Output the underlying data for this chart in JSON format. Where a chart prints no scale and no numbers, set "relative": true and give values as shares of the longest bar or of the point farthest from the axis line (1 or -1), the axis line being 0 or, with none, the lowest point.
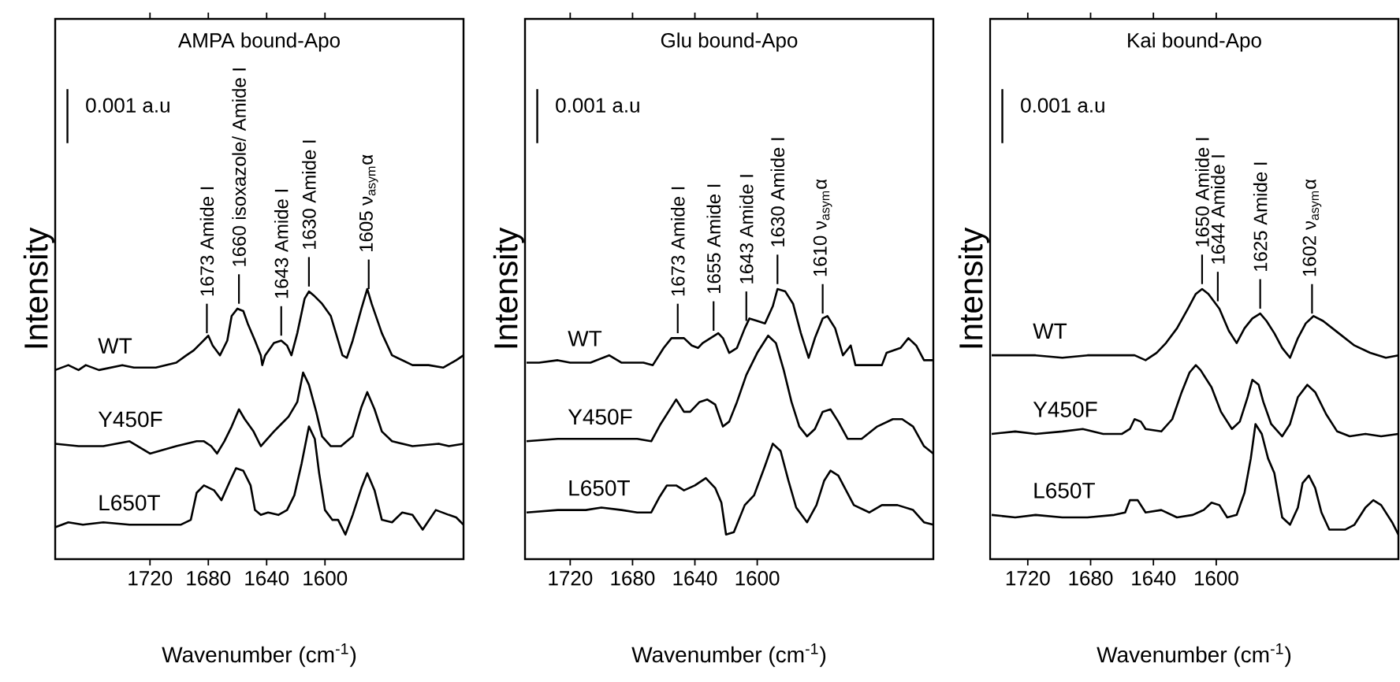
{
  "chart_data": [
    {
      "type": "line",
      "title": "AMPA bound-Apo",
      "xlabel": "Wavenumber (cm$^{-1}$)",
      "ylabel": "Intensity",
      "relative": true,
      "xlim": [
        1785,
        1505
      ],
      "xticks": [
        1720,
        1680,
        1640,
        1600
      ],
      "annotations": [
        "0.001 a.u",
        {
          "text": "1673 Amide I",
          "x": 1681,
          "y": 0.8
        },
        {
          "text": "1660 isoxazole/ Amide I",
          "x": 1659,
          "y": 0.92
        },
        {
          "text": "1643 Amide I",
          "x": 1630,
          "y": 0.79
        },
        {
          "text": "1630 Amide I",
          "x": 1611,
          "y": 0.99
        },
        {
          "text": "1605 ν$_{asym}$α",
          "x": 1570,
          "y": 0.98
        }
      ],
      "series": [
        {
          "name": "WT",
          "color": "#000000",
          "x": [
            1785,
            1776,
            1769,
            1764,
            1755,
            1739,
            1731,
            1716,
            1702,
            1695,
            1690,
            1685,
            1680,
            1677,
            1672,
            1667,
            1664,
            1660,
            1656,
            1653,
            1648,
            1644,
            1643,
            1641,
            1635,
            1630,
            1626,
            1623,
            1619,
            1614,
            1611,
            1607,
            1602,
            1596,
            1591,
            1588,
            1585,
            1581,
            1575,
            1571,
            1568,
            1561,
            1554,
            1540,
            1529,
            1519,
            1510,
            1505
          ],
          "values": [
            0.67,
            0.69,
            0.67,
            0.69,
            0.67,
            0.69,
            0.68,
            0.68,
            0.7,
            0.73,
            0.75,
            0.78,
            0.81,
            0.77,
            0.73,
            0.79,
            0.89,
            0.92,
            0.91,
            0.86,
            0.79,
            0.73,
            0.69,
            0.73,
            0.78,
            0.79,
            0.77,
            0.73,
            0.82,
            0.96,
            0.99,
            0.97,
            0.94,
            0.89,
            0.79,
            0.73,
            0.72,
            0.79,
            0.92,
            1.0,
            0.94,
            0.82,
            0.73,
            0.69,
            0.69,
            0.68,
            0.71,
            0.73
          ]
        },
        {
          "name": "Y450F",
          "color": "#000000",
          "x": [
            1785,
            1769,
            1752,
            1734,
            1720,
            1702,
            1688,
            1683,
            1678,
            1674,
            1669,
            1664,
            1659,
            1655,
            1649,
            1644,
            1641,
            1635,
            1630,
            1625,
            1619,
            1615,
            1611,
            1606,
            1602,
            1596,
            1589,
            1581,
            1575,
            1571,
            1566,
            1561,
            1554,
            1540,
            1522,
            1515,
            1505
          ],
          "values": [
            0.37,
            0.36,
            0.36,
            0.38,
            0.33,
            0.36,
            0.38,
            0.38,
            0.36,
            0.33,
            0.38,
            0.44,
            0.51,
            0.47,
            0.42,
            0.36,
            0.38,
            0.42,
            0.45,
            0.48,
            0.54,
            0.66,
            0.61,
            0.5,
            0.4,
            0.36,
            0.36,
            0.4,
            0.52,
            0.58,
            0.51,
            0.42,
            0.38,
            0.36,
            0.37,
            0.36,
            0.37
          ]
        },
        {
          "name": "L650T",
          "color": "#000000",
          "x": [
            1785,
            1776,
            1766,
            1752,
            1734,
            1716,
            1699,
            1692,
            1688,
            1683,
            1676,
            1671,
            1665,
            1661,
            1656,
            1651,
            1648,
            1644,
            1639,
            1632,
            1626,
            1621,
            1616,
            1611,
            1607,
            1604,
            1600,
            1595,
            1591,
            1586,
            1581,
            1575,
            1571,
            1566,
            1561,
            1554,
            1547,
            1540,
            1533,
            1524,
            1515,
            1510,
            1505
          ],
          "values": [
            0.03,
            0.05,
            0.04,
            0.05,
            0.04,
            0.04,
            0.04,
            0.06,
            0.17,
            0.2,
            0.18,
            0.14,
            0.22,
            0.27,
            0.26,
            0.2,
            0.1,
            0.08,
            0.09,
            0.08,
            0.1,
            0.16,
            0.29,
            0.44,
            0.39,
            0.25,
            0.1,
            0.06,
            0.06,
            0,
            0.08,
            0.19,
            0.25,
            0.18,
            0.06,
            0.05,
            0.09,
            0.08,
            0.02,
            0.1,
            0.08,
            0.07,
            0.04
          ]
        }
      ]
    },
    {
      "type": "line",
      "title": "Glu bound-Apo",
      "xlabel": "Wavenumber (cm$^{-1}$)",
      "ylabel": "Intensity",
      "relative": true,
      "xlim": [
        1749,
        1487
      ],
      "xticks": [
        1720,
        1680,
        1640,
        1600
      ],
      "annotations": [
        "0.001 a.u",
        {
          "text": "1673 Amide I",
          "x": 1651,
          "y": 0.8
        },
        {
          "text": "1655 Amide I",
          "x": 1628,
          "y": 0.81
        },
        {
          "text": "1643 Amide I",
          "x": 1607,
          "y": 0.85
        },
        {
          "text": "1630 Amide I",
          "x": 1587,
          "y": 1.0
        },
        {
          "text": "1610 ν$_{asym}$α",
          "x": 1558,
          "y": 0.88
        }
      ],
      "series": [
        {
          "name": "WT",
          "color": "#000000",
          "x": [
            1748,
            1740,
            1728,
            1720,
            1707,
            1695,
            1687,
            1673,
            1667,
            1660,
            1655,
            1647,
            1642,
            1638,
            1635,
            1630,
            1625,
            1622,
            1618,
            1613,
            1608,
            1605,
            1600,
            1595,
            1590,
            1587,
            1582,
            1577,
            1572,
            1567,
            1563,
            1558,
            1555,
            1550,
            1545,
            1540,
            1537,
            1520,
            1517,
            1508,
            1503,
            1498,
            1493,
            1487
          ],
          "values": [
            0.7,
            0.7,
            0.71,
            0.7,
            0.7,
            0.73,
            0.7,
            0.7,
            0.69,
            0.76,
            0.8,
            0.8,
            0.77,
            0.76,
            0.78,
            0.8,
            0.82,
            0.8,
            0.74,
            0.76,
            0.84,
            0.88,
            0.87,
            0.86,
            0.93,
            1.0,
            0.99,
            0.94,
            0.82,
            0.72,
            0.8,
            0.88,
            0.89,
            0.84,
            0.73,
            0.77,
            0.69,
            0.69,
            0.74,
            0.76,
            0.8,
            0.77,
            0.71,
            0.71
          ]
        },
        {
          "name": "Y450F",
          "color": "#000000",
          "x": [
            1748,
            1728,
            1703,
            1677,
            1668,
            1662,
            1655,
            1652,
            1647,
            1643,
            1637,
            1632,
            1627,
            1622,
            1618,
            1613,
            1607,
            1600,
            1593,
            1588,
            1583,
            1578,
            1573,
            1568,
            1563,
            1558,
            1553,
            1548,
            1542,
            1533,
            1523,
            1513,
            1507,
            1500,
            1493,
            1487
          ],
          "values": [
            0.38,
            0.39,
            0.39,
            0.39,
            0.38,
            0.45,
            0.52,
            0.55,
            0.5,
            0.5,
            0.54,
            0.55,
            0.53,
            0.44,
            0.46,
            0.54,
            0.65,
            0.74,
            0.81,
            0.78,
            0.67,
            0.54,
            0.44,
            0.4,
            0.43,
            0.5,
            0.51,
            0.46,
            0.39,
            0.39,
            0.44,
            0.47,
            0.47,
            0.44,
            0.36,
            0.33
          ]
        },
        {
          "name": "L650T",
          "color": "#000000",
          "x": [
            1748,
            1728,
            1710,
            1700,
            1687,
            1677,
            1668,
            1663,
            1658,
            1652,
            1647,
            1640,
            1633,
            1627,
            1623,
            1620,
            1615,
            1608,
            1602,
            1595,
            1590,
            1585,
            1580,
            1575,
            1568,
            1562,
            1557,
            1553,
            1548,
            1543,
            1538,
            1528,
            1520,
            1510,
            1500,
            1493,
            1487
          ],
          "values": [
            0.09,
            0.1,
            0.1,
            0.11,
            0.1,
            0.09,
            0.09,
            0.15,
            0.2,
            0.2,
            0.18,
            0.2,
            0.23,
            0.19,
            0.13,
            0,
            0.01,
            0.12,
            0.16,
            0.28,
            0.37,
            0.34,
            0.22,
            0.11,
            0.05,
            0.12,
            0.22,
            0.26,
            0.24,
            0.18,
            0.12,
            0.09,
            0.12,
            0.12,
            0.1,
            0.05,
            0.04
          ]
        }
      ]
    },
    {
      "type": "line",
      "title": "Kai bound-Apo",
      "xlabel": "Wavenumber (cm$^{-1}$)",
      "ylabel": "Intensity",
      "relative": true,
      "xlim": [
        1744,
        1484
      ],
      "xticks": [
        1720,
        1680,
        1640,
        1600
      ],
      "annotations": [
        "0.001 a.u",
        {
          "text": "1650 Amide I",
          "x": 1609,
          "y": 1.0
        },
        {
          "text": "1644 Amide I",
          "x": 1599,
          "y": 0.93
        },
        {
          "text": "1625 Amide I",
          "x": 1572,
          "y": 0.9
        },
        {
          "text": "1602 ν$_{asym}$α",
          "x": 1539,
          "y": 0.88
        }
      ],
      "series": [
        {
          "name": "WT",
          "color": "#000000",
          "x": [
            1743,
            1728,
            1715,
            1698,
            1682,
            1665,
            1652,
            1645,
            1638,
            1632,
            1625,
            1618,
            1613,
            1609,
            1605,
            1598,
            1592,
            1587,
            1582,
            1577,
            1572,
            1568,
            1563,
            1558,
            1553,
            1548,
            1543,
            1538,
            1532,
            1522,
            1512,
            1502,
            1492,
            1484
          ],
          "values": [
            0.73,
            0.73,
            0.73,
            0.72,
            0.73,
            0.73,
            0.73,
            0.71,
            0.74,
            0.78,
            0.84,
            0.92,
            0.98,
            1.0,
            0.98,
            0.92,
            0.83,
            0.78,
            0.84,
            0.88,
            0.9,
            0.87,
            0.82,
            0.76,
            0.72,
            0.8,
            0.86,
            0.89,
            0.87,
            0.82,
            0.77,
            0.74,
            0.72,
            0.73
          ]
        },
        {
          "name": "Y450F",
          "color": "#000000",
          "x": [
            1743,
            1728,
            1715,
            1698,
            1685,
            1672,
            1660,
            1655,
            1652,
            1648,
            1645,
            1635,
            1628,
            1622,
            1617,
            1613,
            1610,
            1603,
            1597,
            1590,
            1585,
            1580,
            1577,
            1573,
            1570,
            1565,
            1558,
            1553,
            1548,
            1542,
            1537,
            1530,
            1523,
            1515,
            1505,
            1495,
            1484
          ],
          "values": [
            0.41,
            0.42,
            0.41,
            0.42,
            0.43,
            0.41,
            0.41,
            0.43,
            0.47,
            0.46,
            0.43,
            0.42,
            0.47,
            0.58,
            0.66,
            0.69,
            0.67,
            0.6,
            0.5,
            0.43,
            0.46,
            0.56,
            0.63,
            0.61,
            0.54,
            0.45,
            0.4,
            0.45,
            0.56,
            0.61,
            0.58,
            0.49,
            0.42,
            0.4,
            0.41,
            0.4,
            0.41
          ]
        },
        {
          "name": "L650T",
          "color": "#000000",
          "x": [
            1743,
            1728,
            1715,
            1698,
            1682,
            1665,
            1658,
            1655,
            1650,
            1645,
            1635,
            1625,
            1615,
            1608,
            1603,
            1598,
            1593,
            1587,
            1582,
            1578,
            1575,
            1571,
            1567,
            1563,
            1558,
            1553,
            1548,
            1545,
            1541,
            1537,
            1533,
            1528,
            1518,
            1512,
            1505,
            1500,
            1495,
            1488,
            1484
          ],
          "values": [
            0.08,
            0.07,
            0.08,
            0.07,
            0.07,
            0.08,
            0.09,
            0.14,
            0.14,
            0.09,
            0.1,
            0.07,
            0.08,
            0.1,
            0.13,
            0.12,
            0.07,
            0.08,
            0.17,
            0.31,
            0.45,
            0.41,
            0.31,
            0.25,
            0.07,
            0.04,
            0.11,
            0.21,
            0.24,
            0.19,
            0.09,
            0.02,
            0.02,
            0.04,
            0.11,
            0.14,
            0.12,
            0.05,
            0
          ]
        }
      ]
    }
  ]
}
